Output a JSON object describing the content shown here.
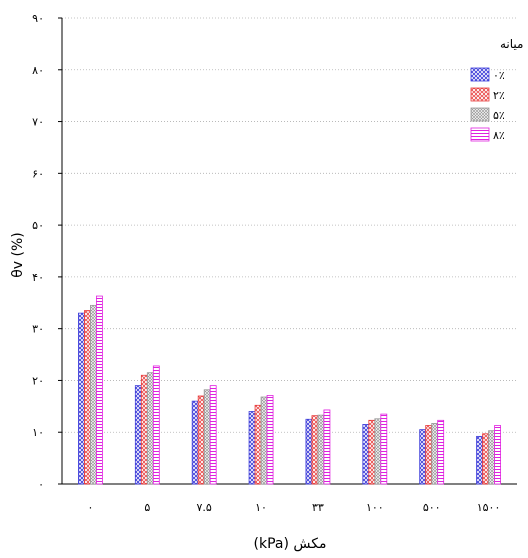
{
  "chart_data": {
    "type": "bar",
    "xlabel": "مکش (kPa)",
    "ylabel": "θv (%)",
    "ylim": [
      0,
      90
    ],
    "yticks": [
      "۰",
      "۱۰",
      "۲۰",
      "۳۰",
      "۴۰",
      "۵۰",
      "۶۰",
      "۷۰",
      "۸۰",
      "۹۰"
    ],
    "ytick_values": [
      0,
      10,
      20,
      30,
      40,
      50,
      60,
      70,
      80,
      90
    ],
    "grid": true,
    "legend": {
      "title": "زئولیت میانه",
      "placement": "top-right"
    },
    "categories": [
      "۰",
      "۵",
      "۷.۵",
      "۱۰",
      "۳۳",
      "۱۰۰",
      "۵۰۰",
      "۱۵۰۰"
    ],
    "series": [
      {
        "name": "۰٪",
        "color": "#3b3bd9",
        "pattern": "crosshatch",
        "values": [
          33,
          19,
          16,
          14,
          12.5,
          11.5,
          10.5,
          9.2
        ]
      },
      {
        "name": "۲٪",
        "color": "#e83a3a",
        "pattern": "circles",
        "values": [
          33.5,
          21,
          17,
          15.2,
          13.2,
          12.3,
          11.3,
          9.7
        ]
      },
      {
        "name": "۵٪",
        "color": "#999999",
        "pattern": "crosshatch-fine",
        "values": [
          34.5,
          21.5,
          18.2,
          16.8,
          13.3,
          12.6,
          11.7,
          10.3
        ]
      },
      {
        "name": "۸٪",
        "color": "#e020e0",
        "pattern": "horizontal-lines",
        "values": [
          36.3,
          22.8,
          19,
          17.1,
          14.3,
          13.5,
          12.3,
          11.3
        ]
      }
    ]
  }
}
